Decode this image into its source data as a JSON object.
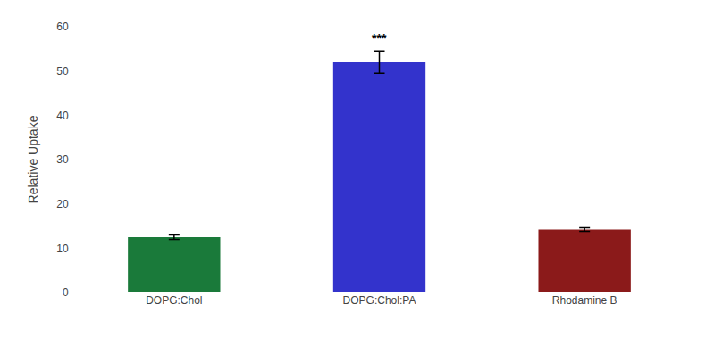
{
  "chart_data": {
    "type": "bar",
    "categories": [
      "DOPG:Chol",
      "DOPG:Chol:PA",
      "Rhodamine B"
    ],
    "values": [
      12.5,
      52.0,
      14.2
    ],
    "errors": [
      0.5,
      2.5,
      0.4
    ],
    "colors": [
      "#1a7a3a",
      "#3333cc",
      "#8b1a1a"
    ],
    "ylabel": "Relative Uptake",
    "ylim": [
      0,
      60
    ],
    "yticks": [
      0,
      10,
      20,
      30,
      40,
      50,
      60
    ],
    "grid": false,
    "annotations": [
      {
        "text": "***",
        "category": "DOPG:Chol:PA"
      }
    ]
  }
}
